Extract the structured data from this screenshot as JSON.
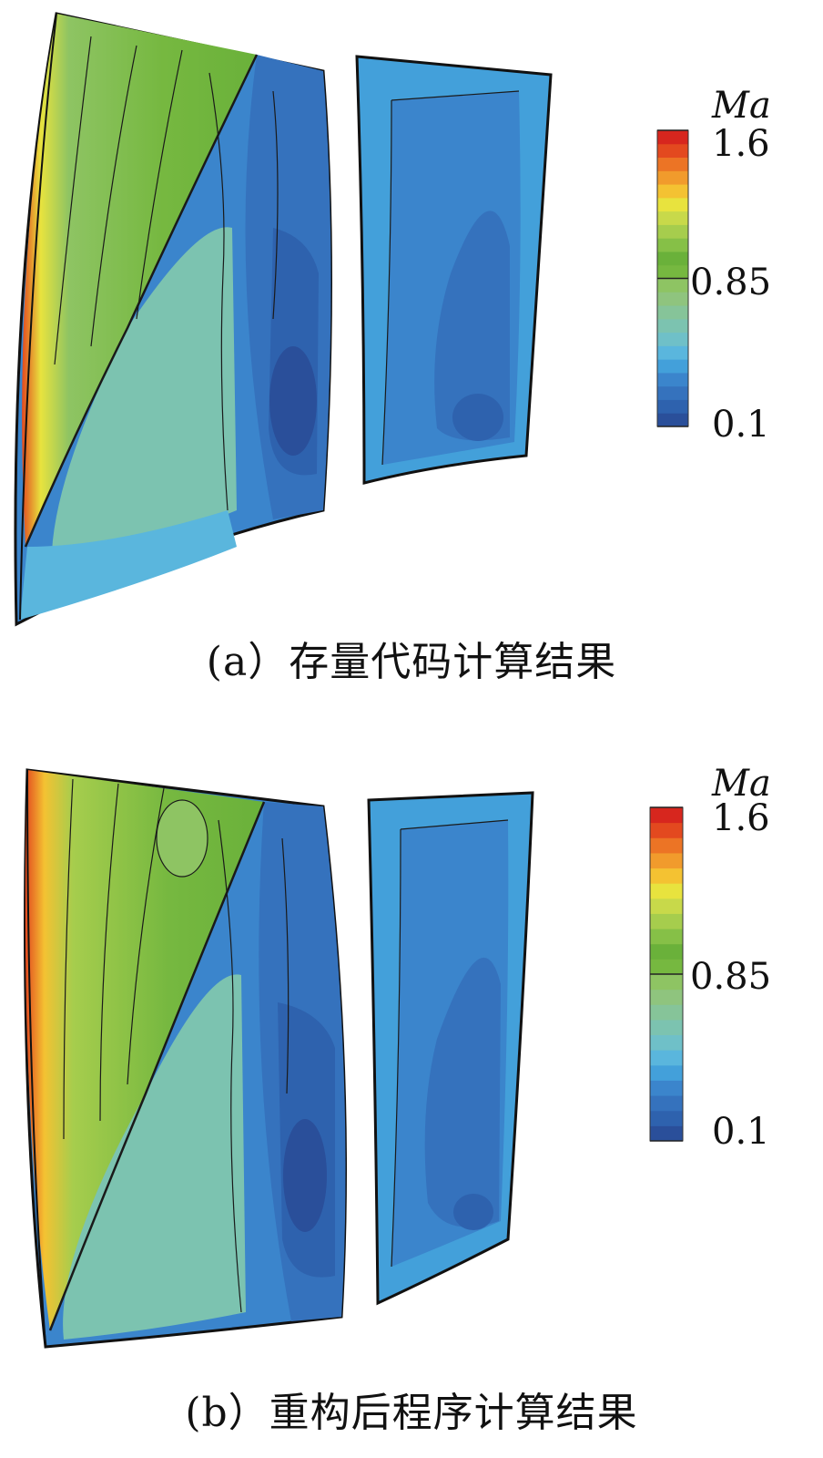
{
  "colorbar": {
    "title": "Ma",
    "max_label": "1.6",
    "mid_label": "0.85",
    "min_label": "0.1",
    "min": 0.1,
    "mid": 0.85,
    "max": 1.6,
    "colors": [
      "#2a4f9a",
      "#2e62ae",
      "#3572bd",
      "#3b85cc",
      "#43a0da",
      "#5ab6dd",
      "#6fc0c8",
      "#7cc3b0",
      "#86c499",
      "#8fc47e",
      "#8ec463",
      "#76b840",
      "#6ab13a",
      "#86c047",
      "#a6cd4d",
      "#c8d94a",
      "#e8e33e",
      "#f4c232",
      "#f19b2c",
      "#ec7425",
      "#e3491f",
      "#d7261e"
    ]
  },
  "panels": [
    {
      "id": "a",
      "caption": "(a）存量代码计算结果"
    },
    {
      "id": "b",
      "caption": "(b）重构后程序计算结果"
    }
  ]
}
